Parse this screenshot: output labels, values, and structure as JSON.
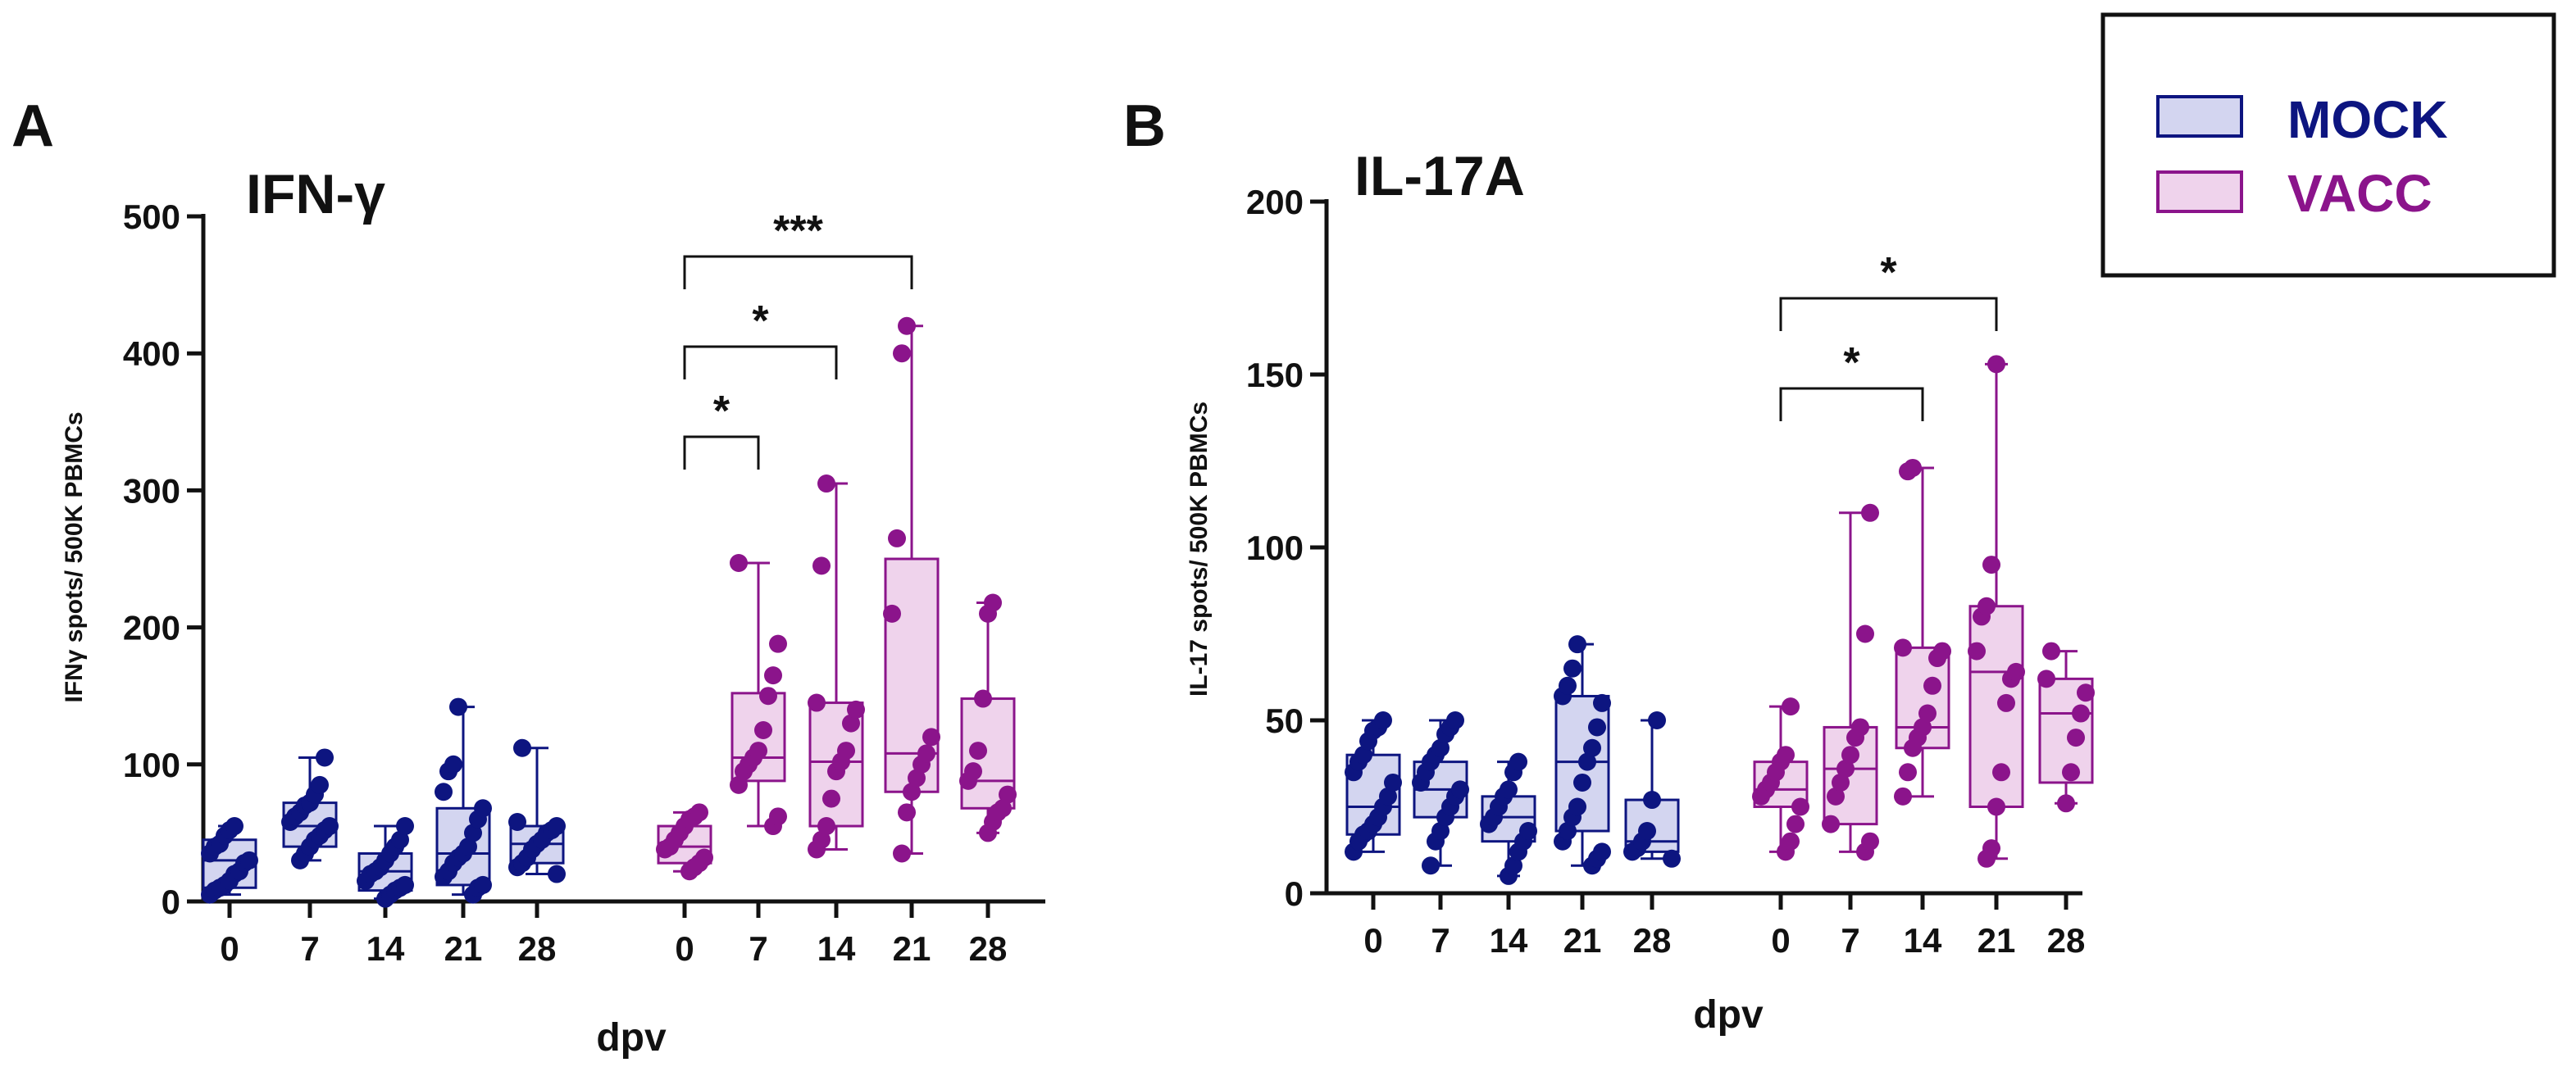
{
  "colors": {
    "mock": "#0d1580",
    "mock_fill": "#d3d5f0",
    "vacc": "#8b148b",
    "vacc_fill": "#efd3ec",
    "axis": "#111111"
  },
  "legend": {
    "mock_label": "MOCK",
    "vacc_label": "VACC"
  },
  "chart_data": [
    {
      "type": "box",
      "panel_letter": "A",
      "title": "IFN-γ",
      "ylabel": "IFNγ spots/ 500K PBMCs",
      "xlabel": "dpv",
      "ylim": [
        0,
        500
      ],
      "yticks": [
        0,
        100,
        200,
        300,
        400,
        500
      ],
      "series": [
        {
          "name": "MOCK",
          "groups": [
            {
              "x": "0",
              "min": 5,
              "q1": 10,
              "median": 30,
              "q3": 45,
              "max": 55,
              "points": [
                5,
                8,
                10,
                12,
                15,
                20,
                22,
                28,
                30,
                35,
                40,
                42,
                48,
                52,
                55
              ]
            },
            {
              "x": "7",
              "min": 30,
              "q1": 40,
              "median": 55,
              "q3": 72,
              "max": 105,
              "points": [
                30,
                35,
                40,
                45,
                48,
                52,
                55,
                58,
                62,
                65,
                70,
                72,
                78,
                85,
                105
              ]
            },
            {
              "x": "14",
              "min": 2,
              "q1": 8,
              "median": 22,
              "q3": 35,
              "max": 55,
              "points": [
                2,
                5,
                8,
                10,
                12,
                15,
                20,
                22,
                25,
                30,
                35,
                40,
                45,
                55
              ]
            },
            {
              "x": "21",
              "min": 5,
              "q1": 12,
              "median": 35,
              "q3": 68,
              "max": 142,
              "points": [
                5,
                10,
                12,
                18,
                22,
                28,
                32,
                35,
                40,
                50,
                60,
                68,
                80,
                95,
                100,
                142
              ]
            },
            {
              "x": "28",
              "min": 20,
              "q1": 28,
              "median": 42,
              "q3": 55,
              "max": 112,
              "points": [
                20,
                25,
                28,
                32,
                38,
                42,
                45,
                50,
                52,
                55,
                58,
                112
              ]
            }
          ]
        },
        {
          "name": "VACC",
          "groups": [
            {
              "x": "0",
              "min": 22,
              "q1": 28,
              "median": 40,
              "q3": 55,
              "max": 65,
              "points": [
                22,
                25,
                28,
                32,
                38,
                40,
                45,
                50,
                55,
                60,
                62,
                65
              ]
            },
            {
              "x": "7",
              "min": 55,
              "q1": 88,
              "median": 105,
              "q3": 152,
              "max": 247,
              "points": [
                55,
                62,
                85,
                95,
                100,
                105,
                110,
                125,
                150,
                165,
                188,
                247
              ]
            },
            {
              "x": "14",
              "min": 38,
              "q1": 55,
              "median": 102,
              "q3": 145,
              "max": 305,
              "points": [
                38,
                45,
                55,
                75,
                95,
                102,
                110,
                130,
                140,
                145,
                245,
                305
              ]
            },
            {
              "x": "21",
              "min": 35,
              "q1": 80,
              "median": 108,
              "q3": 250,
              "max": 420,
              "points": [
                35,
                65,
                80,
                90,
                100,
                108,
                120,
                210,
                265,
                400,
                420
              ]
            },
            {
              "x": "28",
              "min": 50,
              "q1": 68,
              "median": 88,
              "q3": 148,
              "max": 218,
              "points": [
                50,
                58,
                65,
                68,
                78,
                88,
                95,
                110,
                148,
                210,
                218
              ]
            }
          ]
        }
      ],
      "significance": [
        {
          "from": "0",
          "to": "7",
          "label": "*"
        },
        {
          "from": "0",
          "to": "14",
          "label": "*"
        },
        {
          "from": "0",
          "to": "21",
          "label": "***"
        }
      ]
    },
    {
      "type": "box",
      "panel_letter": "B",
      "title": "IL-17A",
      "ylabel": "IL-17 spots/ 500K PBMCs",
      "xlabel": "dpv",
      "ylim": [
        0,
        200
      ],
      "yticks": [
        0,
        50,
        100,
        150,
        200
      ],
      "series": [
        {
          "name": "MOCK",
          "groups": [
            {
              "x": "0",
              "min": 12,
              "q1": 17,
              "median": 25,
              "q3": 40,
              "max": 50,
              "points": [
                12,
                15,
                17,
                18,
                20,
                22,
                25,
                28,
                32,
                35,
                38,
                40,
                44,
                47,
                48,
                50
              ]
            },
            {
              "x": "7",
              "min": 8,
              "q1": 22,
              "median": 30,
              "q3": 38,
              "max": 50,
              "points": [
                8,
                15,
                18,
                22,
                25,
                28,
                30,
                32,
                35,
                38,
                40,
                42,
                46,
                48,
                50
              ]
            },
            {
              "x": "14",
              "min": 5,
              "q1": 15,
              "median": 22,
              "q3": 28,
              "max": 38,
              "points": [
                5,
                8,
                12,
                15,
                18,
                20,
                22,
                25,
                28,
                30,
                35,
                38
              ]
            },
            {
              "x": "21",
              "min": 8,
              "q1": 18,
              "median": 38,
              "q3": 57,
              "max": 72,
              "points": [
                8,
                10,
                12,
                15,
                18,
                22,
                25,
                32,
                38,
                42,
                48,
                55,
                57,
                60,
                65,
                72
              ]
            },
            {
              "x": "28",
              "min": 10,
              "q1": 12,
              "median": 15,
              "q3": 27,
              "max": 50,
              "points": [
                10,
                12,
                13,
                15,
                18,
                27,
                50
              ]
            }
          ]
        },
        {
          "name": "VACC",
          "groups": [
            {
              "x": "0",
              "min": 12,
              "q1": 25,
              "median": 30,
              "q3": 38,
              "max": 54,
              "points": [
                12,
                15,
                20,
                25,
                28,
                30,
                32,
                35,
                38,
                40,
                54
              ]
            },
            {
              "x": "7",
              "min": 12,
              "q1": 20,
              "median": 36,
              "q3": 48,
              "max": 110,
              "points": [
                12,
                15,
                20,
                28,
                32,
                36,
                40,
                45,
                48,
                75,
                110
              ]
            },
            {
              "x": "14",
              "min": 28,
              "q1": 42,
              "median": 48,
              "q3": 71,
              "max": 123,
              "points": [
                28,
                35,
                42,
                45,
                48,
                52,
                60,
                68,
                70,
                71,
                122,
                123
              ]
            },
            {
              "x": "21",
              "min": 10,
              "q1": 25,
              "median": 64,
              "q3": 83,
              "max": 153,
              "points": [
                10,
                13,
                25,
                35,
                55,
                62,
                64,
                70,
                80,
                83,
                95,
                153
              ]
            },
            {
              "x": "28",
              "min": 26,
              "q1": 32,
              "median": 52,
              "q3": 62,
              "max": 70,
              "points": [
                26,
                35,
                45,
                52,
                58,
                62,
                70
              ]
            }
          ]
        }
      ],
      "significance": [
        {
          "from": "0",
          "to": "14",
          "label": "*"
        },
        {
          "from": "0",
          "to": "21",
          "label": "*"
        }
      ]
    }
  ]
}
